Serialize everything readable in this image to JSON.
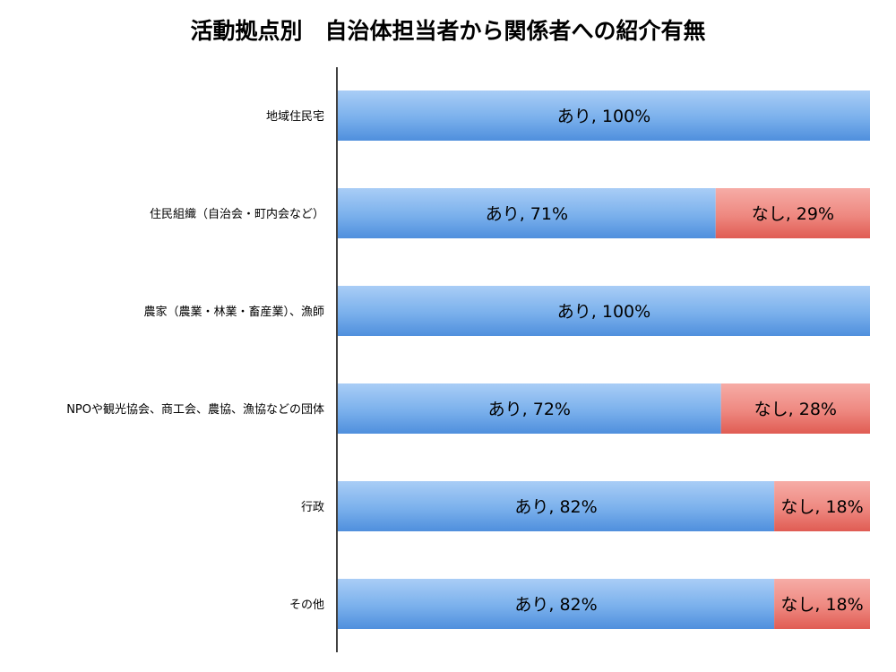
{
  "chart_data": {
    "type": "bar",
    "orientation": "horizontal",
    "stacked": true,
    "percent": true,
    "title": "活動拠点別　自治体担当者から関係者への紹介有無",
    "categories": [
      "地域住民宅",
      "住民組織（自治会・町内会など）",
      "農家（農業・林業・畜産業）、漁師",
      "NPOや観光協会、商工会、農協、漁協などの団体",
      "行政",
      "その他"
    ],
    "series": [
      {
        "name": "あり",
        "values": [
          100,
          71,
          100,
          72,
          82,
          82
        ],
        "color": "#6fa6e6"
      },
      {
        "name": "なし",
        "values": [
          0,
          29,
          0,
          28,
          18,
          18
        ],
        "color": "#ec7b73"
      }
    ],
    "data_labels": [
      [
        "あり, 100%",
        ""
      ],
      [
        "あり, 71%",
        "なし, 29%"
      ],
      [
        "あり, 100%",
        ""
      ],
      [
        "あり, 72%",
        "なし, 28%"
      ],
      [
        "あり, 82%",
        "なし, 18%"
      ],
      [
        "あり, 82%",
        "なし, 18%"
      ]
    ],
    "xlim": [
      0,
      100
    ],
    "grid": false,
    "legend": "none"
  }
}
